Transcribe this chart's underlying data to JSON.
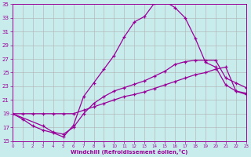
{
  "xlabel": "Windchill (Refroidissement éolien,°C)",
  "xlim": [
    0,
    23
  ],
  "ylim": [
    15,
    35
  ],
  "yticks": [
    15,
    17,
    19,
    21,
    23,
    25,
    27,
    29,
    31,
    33,
    35
  ],
  "xticks": [
    0,
    1,
    2,
    3,
    4,
    5,
    6,
    7,
    8,
    9,
    10,
    11,
    12,
    13,
    14,
    15,
    16,
    17,
    18,
    19,
    20,
    21,
    22,
    23
  ],
  "bg_color": "#c8ecec",
  "grid_color": "#b0b0b0",
  "line_color": "#990099",
  "line1_x": [
    0,
    1,
    2,
    3,
    4,
    5,
    6,
    7,
    8,
    9,
    10,
    11,
    12,
    13,
    14,
    15,
    16,
    17,
    18,
    19,
    20,
    21,
    22,
    23
  ],
  "line1_y": [
    19.0,
    18.2,
    17.2,
    16.6,
    16.2,
    15.6,
    17.3,
    21.5,
    23.5,
    25.5,
    27.5,
    30.2,
    32.4,
    33.2,
    35.2,
    35.4,
    34.5,
    33.0,
    30.0,
    26.5,
    25.8,
    23.2,
    22.3,
    22.0
  ],
  "line2_x": [
    0,
    1,
    2,
    3,
    4,
    5,
    6,
    7,
    8,
    9,
    10,
    11,
    12,
    13,
    14,
    15,
    16,
    17,
    18,
    19,
    20,
    21,
    22,
    23
  ],
  "line2_y": [
    19.0,
    19.0,
    19.0,
    19.0,
    19.0,
    19.0,
    19.0,
    19.5,
    20.0,
    20.5,
    21.0,
    21.5,
    21.8,
    22.2,
    22.7,
    23.2,
    23.7,
    24.2,
    24.7,
    25.0,
    25.5,
    25.8,
    22.3,
    21.8
  ],
  "line3_x": [
    0,
    3,
    4,
    5,
    6,
    7,
    8,
    9,
    10,
    11,
    12,
    13,
    14,
    15,
    16,
    17,
    18,
    19,
    20,
    21,
    22,
    23
  ],
  "line3_y": [
    19.0,
    17.2,
    16.3,
    16.0,
    17.0,
    19.0,
    20.5,
    21.5,
    22.3,
    22.8,
    23.3,
    23.8,
    24.5,
    25.2,
    26.2,
    26.6,
    26.8,
    26.8,
    26.8,
    24.2,
    23.5,
    22.8
  ]
}
